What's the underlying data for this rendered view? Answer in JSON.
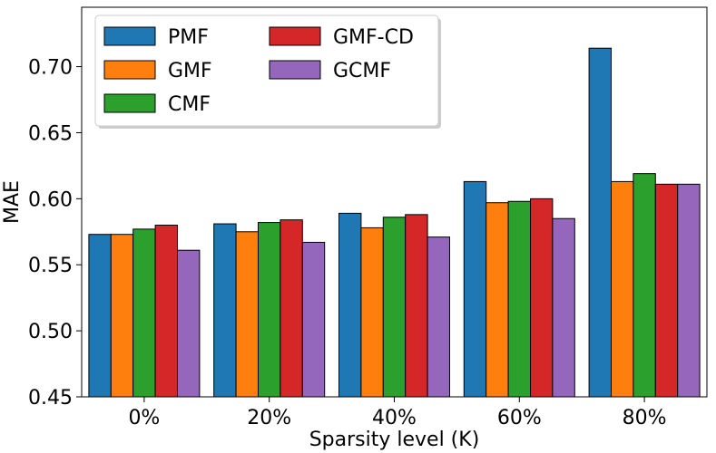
{
  "chart_data": {
    "type": "bar",
    "title": "",
    "xlabel": "Sparsity level (K)",
    "ylabel": "MAE",
    "categories": [
      "0%",
      "20%",
      "40%",
      "60%",
      "80%"
    ],
    "ylim": [
      0.45,
      0.745
    ],
    "yticks": [
      "0.45",
      "0.50",
      "0.55",
      "0.60",
      "0.65",
      "0.70"
    ],
    "legend_position": "top-left",
    "legend_columns": 2,
    "grid": false,
    "series": [
      {
        "name": "PMF",
        "color": "#1f77b4",
        "values": [
          0.573,
          0.581,
          0.589,
          0.613,
          0.714
        ]
      },
      {
        "name": "GMF",
        "color": "#ff7f0e",
        "values": [
          0.573,
          0.575,
          0.578,
          0.597,
          0.613
        ]
      },
      {
        "name": "CMF",
        "color": "#2ca02c",
        "values": [
          0.577,
          0.582,
          0.586,
          0.598,
          0.619
        ]
      },
      {
        "name": "GMF-CD",
        "color": "#d62728",
        "values": [
          0.58,
          0.584,
          0.588,
          0.6,
          0.611
        ]
      },
      {
        "name": "GCMF",
        "color": "#9467bd",
        "values": [
          0.561,
          0.567,
          0.571,
          0.585,
          0.611
        ]
      }
    ]
  }
}
